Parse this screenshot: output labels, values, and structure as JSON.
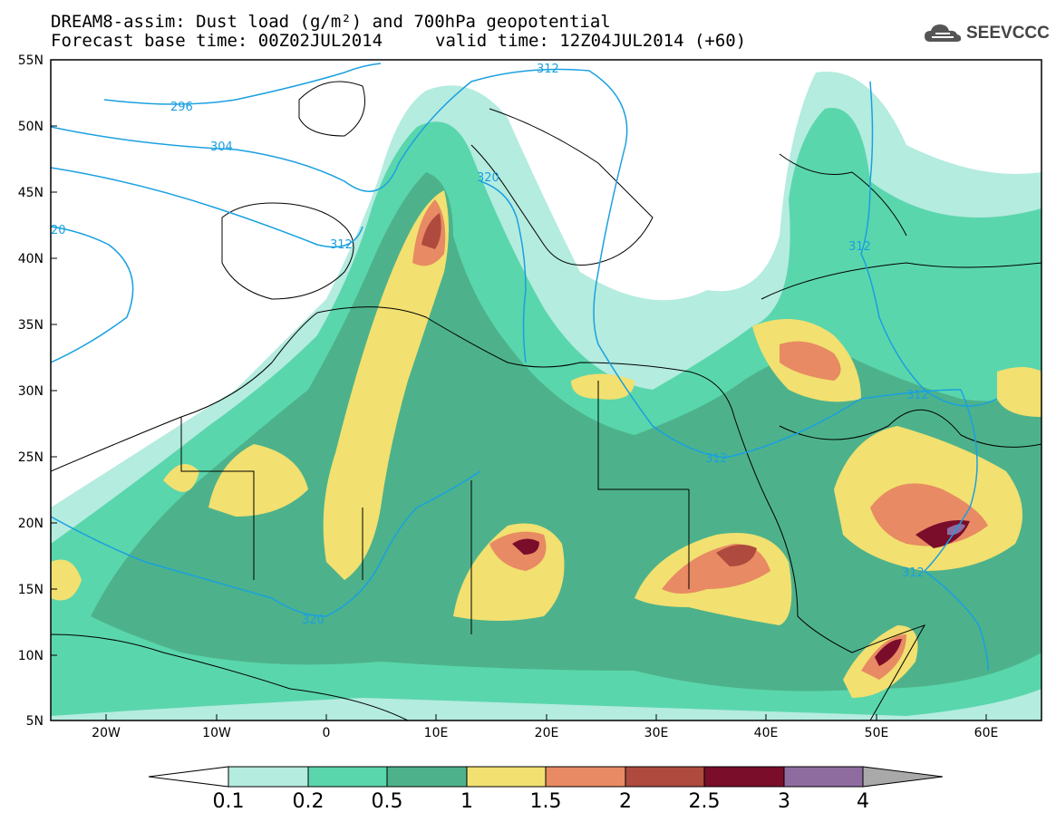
{
  "header": {
    "title_line1": "DREAM8-assim: Dust load (g/m²) and 700hPa geopotential",
    "title_line2": "Forecast base time: 00Z02JUL2014",
    "valid_time": "valid time: 12Z04JUL2014 (+60)",
    "logo_text": "SEEVCCC",
    "logo_icon": "cloud-icon"
  },
  "map": {
    "lon_ticks": [
      "20W",
      "10W",
      "0",
      "10E",
      "20E",
      "30E",
      "40E",
      "50E",
      "60E"
    ],
    "lat_ticks": [
      "55N",
      "50N",
      "45N",
      "40N",
      "35N",
      "30N",
      "25N",
      "20N",
      "15N",
      "10N",
      "5N"
    ],
    "contour_labels": [
      "296",
      "304",
      "312",
      "20",
      "320",
      "312",
      "312",
      "312",
      "312",
      "320",
      "312"
    ],
    "colors": {
      "land_outline": "#000000",
      "contour_line": "#1aa0e0"
    }
  },
  "colorbar": {
    "labels": [
      "0.1",
      "0.2",
      "0.5",
      "1",
      "1.5",
      "2",
      "2.5",
      "3",
      "4"
    ],
    "colors": [
      "#ffffff",
      "#b4ecdf",
      "#5ad6ac",
      "#4db28b",
      "#f2e070",
      "#e88a63",
      "#ae4a3e",
      "#7a0d2a",
      "#8e6ca0",
      "#a9a9a9"
    ]
  }
}
